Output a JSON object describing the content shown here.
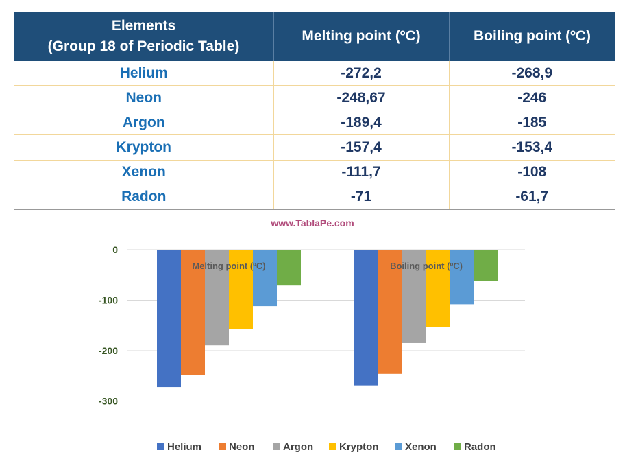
{
  "table": {
    "headers": [
      [
        "Elements",
        "(Group 18 of Periodic Table)"
      ],
      [
        "Melting point (ºC)"
      ],
      [
        "Boiling point (ºC)"
      ]
    ],
    "rows": [
      [
        "Helium",
        "-272,2",
        "-268,9"
      ],
      [
        "Neon",
        "-248,67",
        "-246"
      ],
      [
        "Argon",
        "-189,4",
        "-185"
      ],
      [
        "Krypton",
        "-157,4",
        "-153,4"
      ],
      [
        "Xenon",
        "-111,7",
        "-108"
      ],
      [
        "Radon",
        "-71",
        "-61,7"
      ]
    ]
  },
  "watermark": "www.TablaPe.com",
  "chart_data": {
    "type": "bar",
    "categories": [
      "Melting point (ºC)",
      "Boiling point (ºC)"
    ],
    "series": [
      {
        "name": "Helium",
        "values": [
          -272.2,
          -268.9
        ],
        "color": "#4472c4"
      },
      {
        "name": "Neon",
        "values": [
          -248.67,
          -246
        ],
        "color": "#ed7d31"
      },
      {
        "name": "Argon",
        "values": [
          -189.4,
          -185
        ],
        "color": "#a5a5a5"
      },
      {
        "name": "Krypton",
        "values": [
          -157.4,
          -153.4
        ],
        "color": "#ffc000"
      },
      {
        "name": "Xenon",
        "values": [
          -111.7,
          -108
        ],
        "color": "#5b9bd5"
      },
      {
        "name": "Radon",
        "values": [
          -71,
          -61.7
        ],
        "color": "#70ad47"
      }
    ],
    "yticks": [
      0,
      -100,
      -200,
      -300
    ],
    "ylim": [
      -300,
      0
    ],
    "grid": true,
    "legend": "bottom",
    "title": "",
    "xlabel": "",
    "ylabel": ""
  }
}
